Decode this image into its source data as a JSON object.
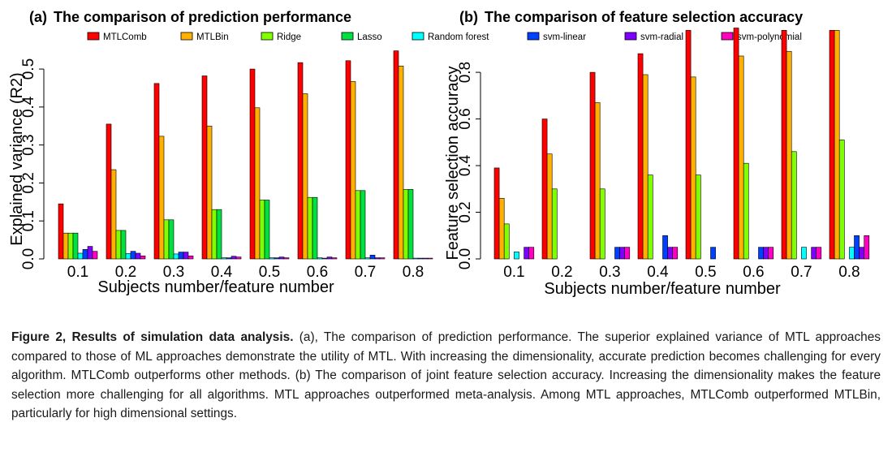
{
  "legend": [
    {
      "name": "MTLComb",
      "color": "#ff0000"
    },
    {
      "name": "MTLBin",
      "color": "#ffb000"
    },
    {
      "name": "Ridge",
      "color": "#80ff00"
    },
    {
      "name": "Lasso",
      "color": "#00e040"
    },
    {
      "name": "Random forest",
      "color": "#00ffff"
    },
    {
      "name": "svm-linear",
      "color": "#0040ff"
    },
    {
      "name": "svm-radial",
      "color": "#8000ff"
    },
    {
      "name": "svm-polynomial",
      "color": "#ff00c0"
    }
  ],
  "chart_data": [
    {
      "type": "bar",
      "panel": "(a)",
      "title": "The comparison of prediction performance",
      "xlabel": "Subjects number/feature number",
      "ylabel": "Explained variance (R2)",
      "categories": [
        "0.1",
        "0.2",
        "0.3",
        "0.4",
        "0.5",
        "0.6",
        "0.7",
        "0.8"
      ],
      "ylim": [
        0,
        0.56
      ],
      "yticks": [
        "0.0",
        "0.1",
        "0.2",
        "0.3",
        "0.4",
        "0.5"
      ],
      "series": [
        {
          "name": "MTLComb",
          "values": [
            0.145,
            0.355,
            0.462,
            0.482,
            0.5,
            0.517,
            0.522,
            0.548
          ]
        },
        {
          "name": "MTLBin",
          "values": [
            0.068,
            0.235,
            0.323,
            0.35,
            0.398,
            0.435,
            0.467,
            0.508
          ]
        },
        {
          "name": "Ridge",
          "values": [
            0.068,
            0.075,
            0.103,
            0.13,
            0.155,
            0.162,
            0.18,
            0.183
          ]
        },
        {
          "name": "Lasso",
          "values": [
            0.068,
            0.075,
            0.103,
            0.13,
            0.155,
            0.162,
            0.18,
            0.183
          ]
        },
        {
          "name": "Random forest",
          "values": [
            0.015,
            0.014,
            0.013,
            0.003,
            0.003,
            0.003,
            0.003,
            0.002
          ]
        },
        {
          "name": "svm-linear",
          "values": [
            0.025,
            0.02,
            0.018,
            0.003,
            0.003,
            0.002,
            0.01,
            0.002
          ]
        },
        {
          "name": "svm-radial",
          "values": [
            0.033,
            0.015,
            0.018,
            0.007,
            0.005,
            0.005,
            0.003,
            0.002
          ]
        },
        {
          "name": "svm-polynomial",
          "values": [
            0.02,
            0.008,
            0.008,
            0.005,
            0.003,
            0.003,
            0.003,
            0.002
          ]
        }
      ]
    },
    {
      "type": "bar",
      "panel": "(b)",
      "title": "The comparison of feature selection accuracy",
      "xlabel": "Subjects number/feature number",
      "ylabel": "Feature selection accuracy",
      "categories": [
        "0.1",
        "0.2",
        "0.3",
        "0.4",
        "0.5",
        "0.6",
        "0.7",
        "0.8"
      ],
      "ylim": [
        0,
        0.95
      ],
      "yticks": [
        "0.0",
        "0.2",
        "0.4",
        "0.6",
        "0.8"
      ],
      "series": [
        {
          "name": "MTLComb",
          "values": [
            0.39,
            0.6,
            0.8,
            0.88,
            0.98,
            0.99,
            0.98,
            0.98
          ]
        },
        {
          "name": "MTLBin",
          "values": [
            0.26,
            0.45,
            0.67,
            0.79,
            0.78,
            0.87,
            0.89,
            0.98
          ]
        },
        {
          "name": "Ridge",
          "values": [
            0.15,
            0.3,
            0.3,
            0.36,
            0.36,
            0.41,
            0.46,
            0.51
          ]
        },
        {
          "name": "Lasso",
          "values": [
            0,
            0,
            0,
            0,
            0,
            0,
            0,
            0
          ]
        },
        {
          "name": "Random forest",
          "values": [
            0.03,
            0,
            0,
            0,
            0,
            0,
            0.05,
            0.05
          ]
        },
        {
          "name": "svm-linear",
          "values": [
            0,
            0,
            0.05,
            0.1,
            0.05,
            0.05,
            0,
            0.1
          ]
        },
        {
          "name": "svm-radial",
          "values": [
            0.05,
            0,
            0.05,
            0.05,
            0,
            0.05,
            0.05,
            0.05
          ]
        },
        {
          "name": "svm-polynomial",
          "values": [
            0.05,
            0,
            0.05,
            0.05,
            0,
            0.05,
            0.05,
            0.1
          ]
        }
      ]
    }
  ],
  "caption": {
    "heading": "Figure 2, Results of simulation data analysis.",
    "body": " (a), The comparison of prediction performance. The superior explained variance of MTL approaches compared to those of ML approaches demonstrate the utility of MTL. With increasing the dimensionality, accurate prediction becomes challenging for every algorithm. MTLComb outperforms other methods. (b) The comparison of joint feature selection accuracy. Increasing the dimensionality makes the feature selection more challenging for all algorithms. MTL approaches outperformed meta-analysis. Among MTL approaches, MTLComb outperformed MTLBin, particularly for high dimensional settings."
  }
}
